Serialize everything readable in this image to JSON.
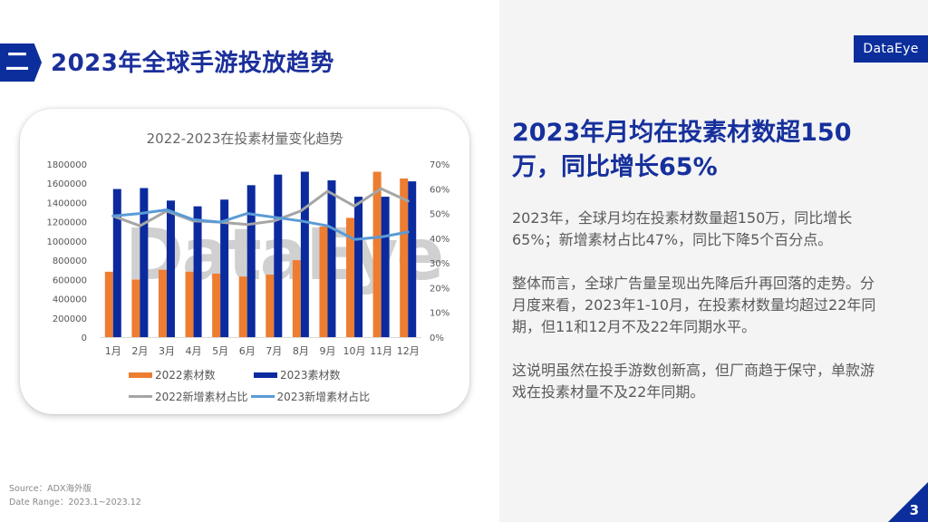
{
  "section": {
    "badge": "二",
    "title": "2023年全球手游投放趋势"
  },
  "logo": {
    "text": "DataEye"
  },
  "chart_data": {
    "type": "bar",
    "title": "2022-2023在投素材量变化趋势",
    "categories": [
      "1月",
      "2月",
      "3月",
      "4月",
      "5月",
      "6月",
      "7月",
      "8月",
      "9月",
      "10月",
      "11月",
      "12月"
    ],
    "series": [
      {
        "name": "2022素材数",
        "kind": "bar",
        "axis": "left",
        "color": "#ed7d31",
        "values": [
          680000,
          600000,
          700000,
          680000,
          660000,
          630000,
          650000,
          800000,
          1150000,
          1240000,
          1720000,
          1650000
        ]
      },
      {
        "name": "2023素材数",
        "kind": "bar",
        "axis": "left",
        "color": "#0b2a9e",
        "values": [
          1540000,
          1550000,
          1420000,
          1360000,
          1430000,
          1580000,
          1690000,
          1720000,
          1630000,
          1460000,
          1460000,
          1620000
        ]
      },
      {
        "name": "2022新增素材占比",
        "kind": "line",
        "axis": "right",
        "color": "#a5a5a5",
        "values": [
          0.49,
          0.45,
          0.51,
          0.47,
          0.465,
          0.455,
          0.47,
          0.51,
          0.59,
          0.53,
          0.6,
          0.55
        ]
      },
      {
        "name": "2023新增素材占比",
        "kind": "line",
        "axis": "right",
        "color": "#5b9bd5",
        "values": [
          0.49,
          0.5,
          0.515,
          0.475,
          0.465,
          0.5,
          0.485,
          0.47,
          0.45,
          0.395,
          0.405,
          0.425
        ]
      }
    ],
    "y_left": {
      "ticks": [
        "0",
        "200000",
        "400000",
        "600000",
        "800000",
        "1000000",
        "1200000",
        "1400000",
        "1600000",
        "1800000"
      ],
      "ylim": [
        0,
        1800000
      ]
    },
    "y_right": {
      "ticks": [
        "0%",
        "10%",
        "20%",
        "30%",
        "40%",
        "50%",
        "60%",
        "70%"
      ],
      "ylim": [
        0,
        0.7
      ]
    },
    "grid": false,
    "legend_position": "bottom",
    "watermark": "DataEye"
  },
  "headline": {
    "line1": "2023年月均在投素材数超150",
    "line2": "万，同比增长65%"
  },
  "body": {
    "p1": "2023年，全球月均在投素材数量超150万，同比增长65%；新增素材占比47%，同比下降5个百分点。",
    "p2": "整体而言，全球广告量呈现出先降后升再回落的走势。分月度来看，2023年1-10月，在投素材数量均超过22年同期，但11和12月不及22年同期水平。",
    "p3": "这说明虽然在投手游数创新高，但厂商趋于保守，单款游戏在投素材量不及22年同期。"
  },
  "footer": {
    "source": "Source：ADX海外版",
    "date_range": "Date Range：2023.1~2023.12"
  },
  "page": {
    "number": "3"
  }
}
